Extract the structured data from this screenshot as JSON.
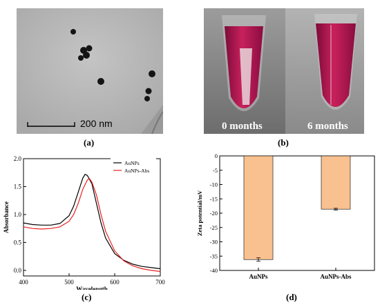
{
  "figure": {
    "captions": {
      "a": "(a)",
      "b": "(b)",
      "c": "(c)",
      "d": "(d)"
    },
    "tem": {
      "scale_label": "200 nm"
    },
    "photo": {
      "left_label": "0 months",
      "right_label": "6 months"
    }
  },
  "chart_data": [
    {
      "type": "line",
      "xlabel": "Wavelength",
      "ylabel": "Absorbance",
      "xlim": [
        400,
        700
      ],
      "ylim": [
        -0.1,
        2.0
      ],
      "x_ticks": [
        "400",
        "500",
        "600",
        "700"
      ],
      "y_ticks": [
        "0.0",
        "0.5",
        "1.0",
        "1.5",
        "2.0"
      ],
      "legend": "top-right",
      "series": [
        {
          "name": "AuNPs",
          "color": "#000000",
          "x": [
            400,
            420,
            440,
            460,
            480,
            500,
            510,
            520,
            530,
            535,
            540,
            550,
            560,
            570,
            580,
            600,
            620,
            640,
            660,
            680,
            700
          ],
          "y": [
            0.85,
            0.82,
            0.81,
            0.81,
            0.84,
            0.98,
            1.15,
            1.4,
            1.65,
            1.72,
            1.7,
            1.55,
            1.2,
            0.85,
            0.58,
            0.3,
            0.18,
            0.11,
            0.07,
            0.05,
            0.03
          ]
        },
        {
          "name": "AuNPs-Abs",
          "color": "#e8201e",
          "x": [
            400,
            420,
            440,
            460,
            480,
            500,
            510,
            520,
            530,
            540,
            545,
            550,
            560,
            570,
            580,
            600,
            620,
            640,
            660,
            680,
            700
          ],
          "y": [
            0.78,
            0.75,
            0.74,
            0.75,
            0.78,
            0.88,
            1.0,
            1.2,
            1.45,
            1.62,
            1.64,
            1.58,
            1.35,
            1.0,
            0.7,
            0.35,
            0.17,
            0.08,
            0.03,
            0.0,
            -0.02
          ]
        }
      ]
    },
    {
      "type": "bar",
      "ylabel": "Zeta potential/mV",
      "categories": [
        "AuNPs",
        "AuNPs-Abs"
      ],
      "values": [
        -36.2,
        -18.6
      ],
      "errors": [
        0.6,
        0.3
      ],
      "ylim": [
        -40,
        0
      ],
      "y_ticks": [
        "0",
        "-5",
        "-10",
        "-15",
        "-20",
        "-25",
        "-30",
        "-35",
        "-40"
      ],
      "bar_color": "#f8c18f",
      "edge_color": "#000000"
    }
  ]
}
